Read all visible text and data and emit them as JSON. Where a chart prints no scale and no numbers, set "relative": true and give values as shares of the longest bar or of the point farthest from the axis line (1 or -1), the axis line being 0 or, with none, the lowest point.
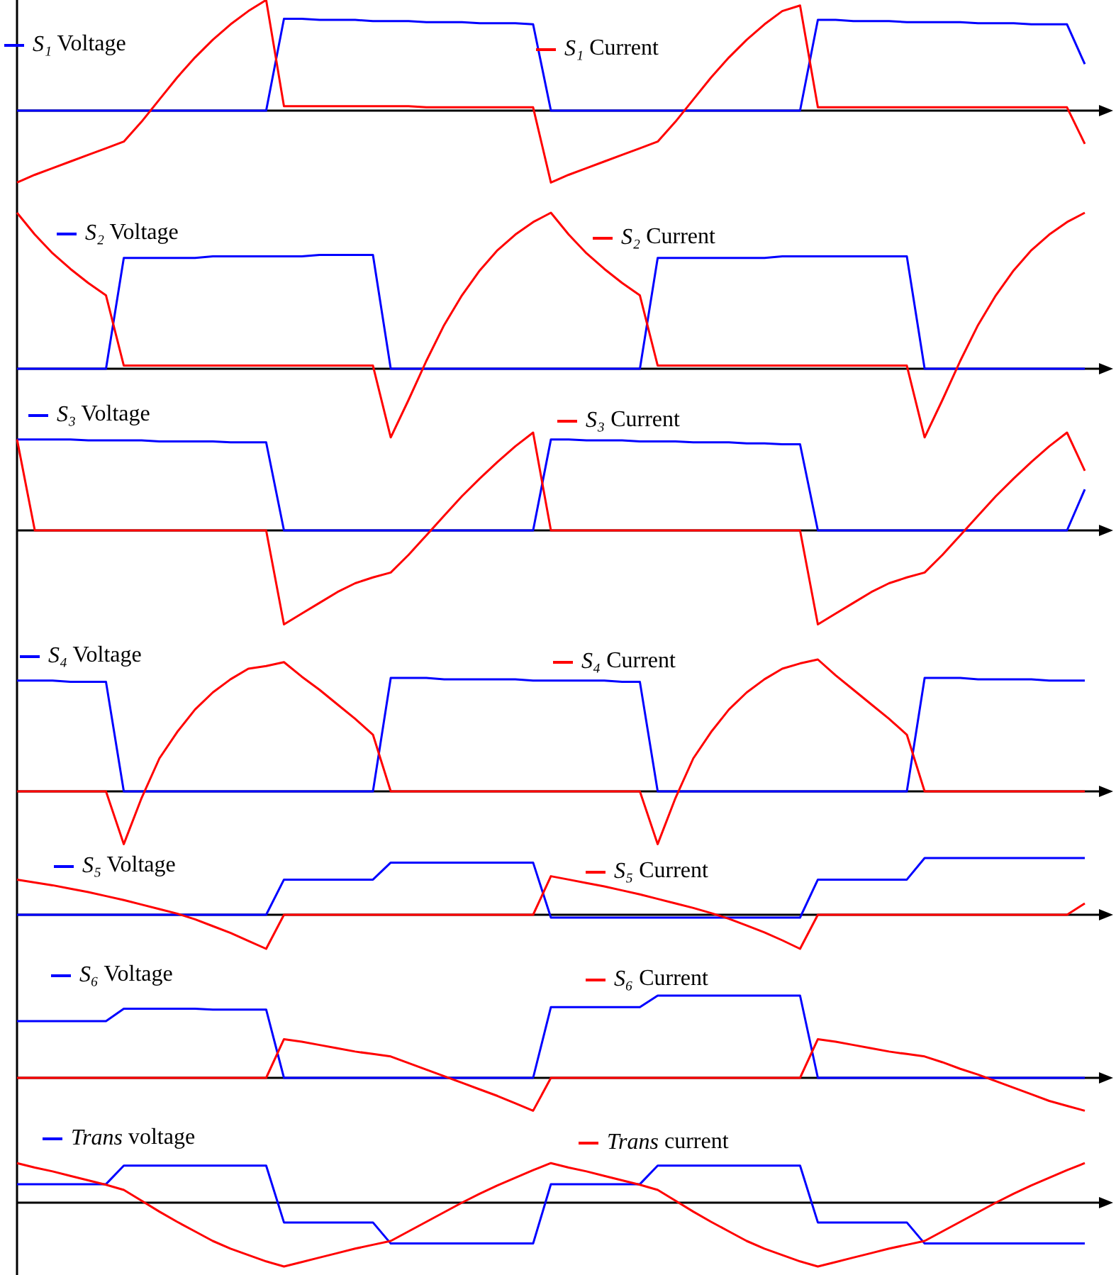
{
  "chart_data": [
    {
      "type": "line",
      "relative": true,
      "legend": "top",
      "categories": [
        null,
        null,
        null,
        null,
        null,
        null,
        null,
        null,
        null,
        null,
        null,
        null,
        null,
        null,
        null,
        null,
        null,
        null,
        null,
        null,
        null,
        null,
        null,
        null,
        null,
        null,
        null,
        null,
        null,
        null,
        null,
        null,
        null,
        null,
        null,
        null,
        null,
        null,
        null,
        null,
        null,
        null,
        null,
        null,
        null,
        null,
        null,
        null,
        null,
        null,
        null,
        null,
        null,
        null,
        null,
        null,
        null,
        null,
        null,
        null,
        null
      ],
      "series": [
        {
          "name": "S₁ Voltage",
          "color": "#0000ff",
          "values": [
            0,
            0,
            0,
            0,
            0,
            0,
            0,
            0,
            0,
            0,
            0,
            0,
            0,
            0,
            0,
            0.83,
            0.83,
            0.82,
            0.82,
            0.82,
            0.81,
            0.81,
            0.81,
            0.8,
            0.8,
            0.8,
            0.79,
            0.79,
            0.79,
            0.78,
            0,
            0,
            0,
            0,
            0,
            0,
            0,
            0,
            0,
            0,
            0,
            0,
            0,
            0,
            0,
            0.82,
            0.82,
            0.81,
            0.81,
            0.81,
            0.8,
            0.8,
            0.8,
            0.8,
            0.79,
            0.79,
            0.79,
            0.78,
            0.78,
            0.78,
            0.42
          ]
        },
        {
          "name": "S₁ Current",
          "color": "#ff0000",
          "values": [
            -0.65,
            -0.58,
            -0.52,
            -0.46,
            -0.4,
            -0.34,
            -0.28,
            -0.1,
            0.1,
            0.3,
            0.48,
            0.64,
            0.78,
            0.9,
            1,
            0.04,
            0.04,
            0.04,
            0.04,
            0.04,
            0.04,
            0.04,
            0.04,
            0.03,
            0.03,
            0.03,
            0.03,
            0.03,
            0.03,
            0.03,
            -0.65,
            -0.58,
            -0.52,
            -0.46,
            -0.4,
            -0.34,
            -0.28,
            -0.1,
            0.1,
            0.3,
            0.48,
            0.64,
            0.78,
            0.9,
            0.95,
            0.03,
            0.03,
            0.03,
            0.03,
            0.03,
            0.03,
            0.03,
            0.03,
            0.03,
            0.03,
            0.03,
            0.03,
            0.03,
            0.03,
            0.03,
            -0.3
          ]
        }
      ]
    },
    {
      "type": "line",
      "relative": true,
      "legend": "top",
      "categories": [
        null,
        null,
        null,
        null,
        null,
        null,
        null,
        null,
        null,
        null,
        null,
        null,
        null,
        null,
        null,
        null,
        null,
        null,
        null,
        null,
        null,
        null,
        null,
        null,
        null,
        null,
        null,
        null,
        null,
        null,
        null,
        null,
        null,
        null,
        null,
        null,
        null,
        null,
        null,
        null,
        null,
        null,
        null,
        null,
        null,
        null,
        null,
        null,
        null,
        null,
        null,
        null,
        null,
        null,
        null,
        null,
        null,
        null,
        null,
        null,
        null
      ],
      "series": [
        {
          "name": "S₂ Voltage",
          "color": "#0000ff",
          "values": [
            0,
            0,
            0,
            0,
            0,
            0,
            0.71,
            0.71,
            0.71,
            0.71,
            0.71,
            0.72,
            0.72,
            0.72,
            0.72,
            0.72,
            0.72,
            0.73,
            0.73,
            0.73,
            0.73,
            0,
            0,
            0,
            0,
            0,
            0,
            0,
            0,
            0,
            0,
            0,
            0,
            0,
            0,
            0,
            0.71,
            0.71,
            0.71,
            0.71,
            0.71,
            0.71,
            0.71,
            0.72,
            0.72,
            0.72,
            0.72,
            0.72,
            0.72,
            0.72,
            0.72,
            0,
            0,
            0,
            0,
            0,
            0,
            0,
            0,
            0,
            0
          ]
        },
        {
          "name": "S₂ Current",
          "color": "#ff0000",
          "values": [
            1,
            0.86,
            0.74,
            0.64,
            0.55,
            0.47,
            0.02,
            0.02,
            0.02,
            0.02,
            0.02,
            0.02,
            0.02,
            0.02,
            0.02,
            0.02,
            0.02,
            0.02,
            0.02,
            0.02,
            0.02,
            -0.44,
            -0.2,
            0.05,
            0.28,
            0.47,
            0.63,
            0.76,
            0.86,
            0.94,
            1,
            0.86,
            0.74,
            0.64,
            0.55,
            0.47,
            0.02,
            0.02,
            0.02,
            0.02,
            0.02,
            0.02,
            0.02,
            0.02,
            0.02,
            0.02,
            0.02,
            0.02,
            0.02,
            0.02,
            0.02,
            -0.44,
            -0.2,
            0.05,
            0.28,
            0.47,
            0.63,
            0.76,
            0.86,
            0.94,
            1
          ]
        }
      ]
    },
    {
      "type": "line",
      "relative": true,
      "legend": "top",
      "categories": [
        null,
        null,
        null,
        null,
        null,
        null,
        null,
        null,
        null,
        null,
        null,
        null,
        null,
        null,
        null,
        null,
        null,
        null,
        null,
        null,
        null,
        null,
        null,
        null,
        null,
        null,
        null,
        null,
        null,
        null,
        null,
        null,
        null,
        null,
        null,
        null,
        null,
        null,
        null,
        null,
        null,
        null,
        null,
        null,
        null,
        null,
        null,
        null,
        null,
        null,
        null,
        null,
        null,
        null,
        null,
        null,
        null,
        null,
        null,
        null,
        null
      ],
      "series": [
        {
          "name": "S₃ Voltage",
          "color": "#0000ff",
          "values": [
            0.93,
            0.93,
            0.93,
            0.93,
            0.92,
            0.92,
            0.92,
            0.92,
            0.91,
            0.91,
            0.91,
            0.91,
            0.9,
            0.9,
            0.9,
            0,
            0,
            0,
            0,
            0,
            0,
            0,
            0,
            0,
            0,
            0,
            0,
            0,
            0,
            0,
            0.93,
            0.93,
            0.92,
            0.92,
            0.92,
            0.91,
            0.91,
            0.91,
            0.9,
            0.9,
            0.9,
            0.89,
            0.89,
            0.88,
            0.88,
            0,
            0,
            0,
            0,
            0,
            0,
            0,
            0,
            0,
            0,
            0,
            0,
            0,
            0,
            0,
            0.42
          ]
        },
        {
          "name": "S₃ Current",
          "color": "#ff0000",
          "values": [
            0.93,
            0,
            0,
            0,
            0,
            0,
            0,
            0,
            0,
            0,
            0,
            0,
            0,
            0,
            0,
            -0.96,
            -0.85,
            -0.74,
            -0.63,
            -0.54,
            -0.48,
            -0.43,
            -0.25,
            -0.05,
            0.15,
            0.35,
            0.53,
            0.7,
            0.86,
            1,
            0,
            0,
            0,
            0,
            0,
            0,
            0,
            0,
            0,
            0,
            0,
            0,
            0,
            0,
            0,
            -0.96,
            -0.85,
            -0.74,
            -0.63,
            -0.54,
            -0.48,
            -0.43,
            -0.25,
            -0.05,
            0.15,
            0.35,
            0.53,
            0.7,
            0.86,
            1,
            0.61
          ]
        }
      ]
    },
    {
      "type": "line",
      "relative": true,
      "legend": "top",
      "categories": [
        null,
        null,
        null,
        null,
        null,
        null,
        null,
        null,
        null,
        null,
        null,
        null,
        null,
        null,
        null,
        null,
        null,
        null,
        null,
        null,
        null,
        null,
        null,
        null,
        null,
        null,
        null,
        null,
        null,
        null,
        null,
        null,
        null,
        null,
        null,
        null,
        null,
        null,
        null,
        null,
        null,
        null,
        null,
        null,
        null,
        null,
        null,
        null,
        null,
        null,
        null,
        null,
        null,
        null,
        null,
        null,
        null,
        null,
        null,
        null,
        null
      ],
      "series": [
        {
          "name": "S₄ Voltage",
          "color": "#0000ff",
          "values": [
            0.84,
            0.84,
            0.84,
            0.83,
            0.83,
            0.83,
            0,
            0,
            0,
            0,
            0,
            0,
            0,
            0,
            0,
            0,
            0,
            0,
            0,
            0,
            0,
            0.86,
            0.86,
            0.86,
            0.85,
            0.85,
            0.85,
            0.85,
            0.85,
            0.84,
            0.84,
            0.84,
            0.84,
            0.84,
            0.83,
            0.83,
            0,
            0,
            0,
            0,
            0,
            0,
            0,
            0,
            0,
            0,
            0,
            0,
            0,
            0,
            0,
            0.86,
            0.86,
            0.86,
            0.85,
            0.85,
            0.85,
            0.85,
            0.84,
            0.84,
            0.84
          ]
        },
        {
          "name": "S₄ Current",
          "color": "#ff0000",
          "values": [
            0,
            0,
            0,
            0,
            0,
            0,
            -0.4,
            -0.05,
            0.25,
            0.45,
            0.62,
            0.75,
            0.85,
            0.93,
            0.95,
            0.98,
            0.87,
            0.77,
            0.66,
            0.55,
            0.43,
            0,
            0,
            0,
            0,
            0,
            0,
            0,
            0,
            0,
            0,
            0,
            0,
            0,
            0,
            0,
            -0.4,
            -0.05,
            0.25,
            0.45,
            0.62,
            0.75,
            0.85,
            0.93,
            0.97,
            1,
            0.88,
            0.77,
            0.66,
            0.55,
            0.43,
            0,
            0,
            0,
            0,
            0,
            0,
            0,
            0,
            0,
            0
          ]
        }
      ]
    },
    {
      "type": "line",
      "relative": true,
      "legend": "top",
      "categories": [
        null,
        null,
        null,
        null,
        null,
        null,
        null,
        null,
        null,
        null,
        null,
        null,
        null,
        null,
        null,
        null,
        null,
        null,
        null,
        null,
        null,
        null,
        null,
        null,
        null,
        null,
        null,
        null,
        null,
        null,
        null,
        null,
        null,
        null,
        null,
        null,
        null,
        null,
        null,
        null,
        null,
        null,
        null,
        null,
        null,
        null,
        null,
        null,
        null,
        null,
        null,
        null,
        null,
        null,
        null,
        null,
        null,
        null,
        null,
        null,
        null
      ],
      "series": [
        {
          "name": "S₅ Voltage",
          "color": "#0000ff",
          "values": [
            0,
            0,
            0,
            0,
            0,
            0,
            0,
            0,
            0,
            0,
            0,
            0,
            0,
            0,
            0,
            0.62,
            0.62,
            0.62,
            0.62,
            0.62,
            0.62,
            0.92,
            0.92,
            0.92,
            0.92,
            0.92,
            0.92,
            0.92,
            0.92,
            0.92,
            -0.05,
            -0.05,
            -0.05,
            -0.05,
            -0.05,
            -0.05,
            -0.05,
            -0.05,
            -0.05,
            -0.05,
            -0.05,
            -0.05,
            -0.05,
            -0.05,
            -0.05,
            0.62,
            0.62,
            0.62,
            0.62,
            0.62,
            0.62,
            1,
            1,
            1,
            1,
            1,
            1,
            1,
            1,
            1,
            1
          ]
        },
        {
          "name": "S₅ Current",
          "color": "#ff0000",
          "values": [
            0.62,
            0.57,
            0.52,
            0.46,
            0.4,
            0.33,
            0.26,
            0.18,
            0.1,
            0.02,
            -0.08,
            -0.2,
            -0.32,
            -0.46,
            -0.6,
            0,
            0,
            0,
            0,
            0,
            0,
            0,
            0,
            0,
            0,
            0,
            0,
            0,
            0,
            0,
            0.68,
            0.62,
            0.56,
            0.5,
            0.43,
            0.36,
            0.28,
            0.2,
            0.12,
            0.03,
            -0.07,
            -0.19,
            -0.31,
            -0.45,
            -0.6,
            0,
            0,
            0,
            0,
            0,
            0,
            0,
            0,
            0,
            0,
            0,
            0,
            0,
            0,
            0,
            0.2
          ]
        }
      ]
    },
    {
      "type": "line",
      "relative": true,
      "legend": "top",
      "categories": [
        null,
        null,
        null,
        null,
        null,
        null,
        null,
        null,
        null,
        null,
        null,
        null,
        null,
        null,
        null,
        null,
        null,
        null,
        null,
        null,
        null,
        null,
        null,
        null,
        null,
        null,
        null,
        null,
        null,
        null,
        null,
        null,
        null,
        null,
        null,
        null,
        null,
        null,
        null,
        null,
        null,
        null,
        null,
        null,
        null,
        null,
        null,
        null,
        null,
        null,
        null,
        null,
        null,
        null,
        null,
        null,
        null,
        null,
        null,
        null,
        null
      ],
      "series": [
        {
          "name": "S₆ Voltage",
          "color": "#0000ff",
          "values": [
            0.69,
            0.69,
            0.69,
            0.69,
            0.69,
            0.69,
            0.84,
            0.84,
            0.84,
            0.84,
            0.84,
            0.83,
            0.83,
            0.83,
            0.83,
            0,
            0,
            0,
            0,
            0,
            0,
            0,
            0,
            0,
            0,
            0,
            0,
            0,
            0,
            0,
            0.86,
            0.86,
            0.86,
            0.86,
            0.86,
            0.86,
            1,
            1,
            1,
            1,
            1,
            1,
            1,
            1,
            1,
            0,
            0,
            0,
            0,
            0,
            0,
            0,
            0,
            0,
            0,
            0,
            0,
            0,
            0,
            0,
            0
          ]
        },
        {
          "name": "S₆ Current",
          "color": "#ff0000",
          "values": [
            0,
            0,
            0,
            0,
            0,
            0,
            0,
            0,
            0,
            0,
            0,
            0,
            0,
            0,
            0,
            0.47,
            0.44,
            0.4,
            0.36,
            0.32,
            0.29,
            0.26,
            0.18,
            0.1,
            0.02,
            -0.06,
            -0.14,
            -0.22,
            -0.31,
            -0.4,
            0,
            0,
            0,
            0,
            0,
            0,
            0,
            0,
            0,
            0,
            0,
            0,
            0,
            0,
            0,
            0.47,
            0.44,
            0.4,
            0.36,
            0.32,
            0.29,
            0.26,
            0.19,
            0.11,
            0.04,
            -0.04,
            -0.12,
            -0.2,
            -0.28,
            -0.34,
            -0.4
          ]
        }
      ]
    },
    {
      "type": "line",
      "relative": true,
      "legend": "top",
      "categories": [
        null,
        null,
        null,
        null,
        null,
        null,
        null,
        null,
        null,
        null,
        null,
        null,
        null,
        null,
        null,
        null,
        null,
        null,
        null,
        null,
        null,
        null,
        null,
        null,
        null,
        null,
        null,
        null,
        null,
        null,
        null,
        null,
        null,
        null,
        null,
        null,
        null,
        null,
        null,
        null,
        null,
        null,
        null,
        null,
        null,
        null,
        null,
        null,
        null,
        null,
        null,
        null,
        null,
        null,
        null,
        null,
        null,
        null,
        null,
        null,
        null
      ],
      "series": [
        {
          "name": "Trans voltage",
          "color": "#0000ff",
          "values": [
            0.29,
            0.29,
            0.29,
            0.29,
            0.29,
            0.29,
            0.58,
            0.58,
            0.58,
            0.58,
            0.58,
            0.58,
            0.58,
            0.58,
            0.58,
            -0.31,
            -0.31,
            -0.31,
            -0.31,
            -0.31,
            -0.31,
            -0.64,
            -0.64,
            -0.64,
            -0.64,
            -0.64,
            -0.64,
            -0.64,
            -0.64,
            -0.64,
            0.29,
            0.29,
            0.29,
            0.29,
            0.29,
            0.29,
            0.58,
            0.58,
            0.58,
            0.58,
            0.58,
            0.58,
            0.58,
            0.58,
            0.58,
            -0.31,
            -0.31,
            -0.31,
            -0.31,
            -0.31,
            -0.31,
            -0.64,
            -0.64,
            -0.64,
            -0.64,
            -0.64,
            -0.64,
            -0.64,
            -0.64,
            -0.64,
            -0.64
          ]
        },
        {
          "name": "Trans current",
          "color": "#ff0000",
          "values": [
            0.62,
            0.55,
            0.49,
            0.42,
            0.35,
            0.28,
            0.2,
            0.03,
            -0.14,
            -0.3,
            -0.45,
            -0.6,
            -0.72,
            -0.82,
            -0.92,
            -1,
            -0.93,
            -0.86,
            -0.79,
            -0.72,
            -0.66,
            -0.6,
            -0.45,
            -0.3,
            -0.15,
            0,
            0.14,
            0.27,
            0.39,
            0.51,
            0.62,
            0.55,
            0.49,
            0.42,
            0.35,
            0.28,
            0.2,
            0.03,
            -0.14,
            -0.3,
            -0.45,
            -0.6,
            -0.72,
            -0.82,
            -0.92,
            -1,
            -0.93,
            -0.86,
            -0.79,
            -0.72,
            -0.66,
            -0.6,
            -0.45,
            -0.3,
            -0.15,
            0,
            0.14,
            0.27,
            0.39,
            0.51,
            0.62
          ]
        }
      ]
    }
  ]
}
